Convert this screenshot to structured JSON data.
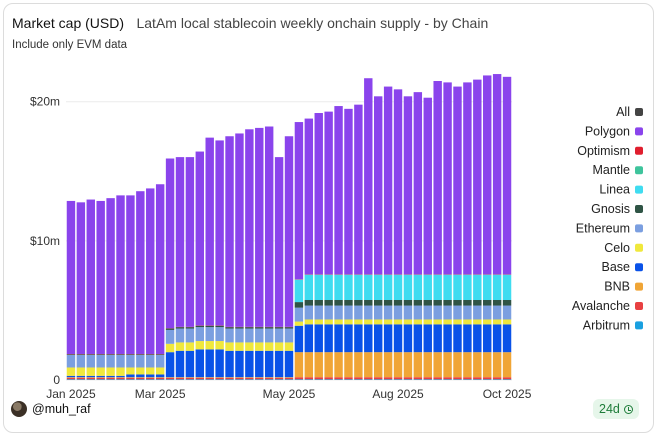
{
  "header": {
    "title": "Market cap (USD)",
    "subtitle": "LatAm local stablecoin weekly onchain supply - by Chain",
    "note": "Include only EVM data"
  },
  "footer": {
    "author": "@muh_raf",
    "badge": "24d",
    "avatar_icon": "avatar-photo",
    "badge_icon": "clock-check-icon"
  },
  "chart_data": {
    "type": "bar",
    "stacked": true,
    "unit": "USD",
    "ylim": [
      0,
      23000000
    ],
    "yticks": [
      {
        "value": 0,
        "label": "0"
      },
      {
        "value": 10000000,
        "label": "$10m"
      },
      {
        "value": 20000000,
        "label": "$20m"
      }
    ],
    "xticks": [
      {
        "index": 0,
        "label": "Jan 2025"
      },
      {
        "index": 9,
        "label": "Mar 2025"
      },
      {
        "index": 22,
        "label": "May 2025"
      },
      {
        "index": 33,
        "label": "Aug 2025"
      },
      {
        "index": 44,
        "label": "Oct 2025"
      }
    ],
    "legend_position": "right",
    "legend_all": {
      "label": "All",
      "color": "#444444"
    },
    "series": [
      {
        "name": "Arbitrum",
        "color": "#1aa0e0",
        "values": [
          0.05,
          0.05,
          0.05,
          0.05,
          0.05,
          0.05,
          0.05,
          0.05,
          0.05,
          0.05,
          0.05,
          0.05,
          0.05,
          0.05,
          0.05,
          0.05,
          0.05,
          0.05,
          0.05,
          0.05,
          0.05,
          0.05,
          0.05,
          0.05,
          0.05,
          0.05,
          0.05,
          0.05,
          0.05,
          0.05,
          0.05,
          0.05,
          0.05,
          0.05,
          0.05,
          0.05,
          0.05,
          0.05,
          0.05,
          0.05,
          0.05,
          0.05,
          0.05,
          0.05,
          0.05
        ]
      },
      {
        "name": "Avalanche",
        "color": "#e84142",
        "values": [
          0.1,
          0.1,
          0.1,
          0.1,
          0.1,
          0.1,
          0.1,
          0.1,
          0.1,
          0.1,
          0.1,
          0.1,
          0.1,
          0.1,
          0.1,
          0.1,
          0.1,
          0.1,
          0.1,
          0.1,
          0.1,
          0.1,
          0.1,
          0.15,
          0.15,
          0.15,
          0.15,
          0.15,
          0.15,
          0.15,
          0.15,
          0.15,
          0.15,
          0.15,
          0.15,
          0.15,
          0.15,
          0.15,
          0.15,
          0.15,
          0.15,
          0.15,
          0.15,
          0.15,
          0.15
        ]
      },
      {
        "name": "BNB",
        "color": "#f0a536",
        "values": [
          0.05,
          0.05,
          0.05,
          0.05,
          0.05,
          0.05,
          0.05,
          0.05,
          0.05,
          0.05,
          0.05,
          0.05,
          0.05,
          0.05,
          0.05,
          0.05,
          0.05,
          0.05,
          0.05,
          0.05,
          0.05,
          0.05,
          0.05,
          1.8,
          1.8,
          1.8,
          1.8,
          1.8,
          1.8,
          1.8,
          1.8,
          1.8,
          1.8,
          1.8,
          1.8,
          1.8,
          1.8,
          1.8,
          1.8,
          1.8,
          1.8,
          1.8,
          1.8,
          1.8,
          1.8
        ]
      },
      {
        "name": "Base",
        "color": "#0a52e8",
        "values": [
          0.1,
          0.1,
          0.1,
          0.1,
          0.1,
          0.1,
          0.2,
          0.2,
          0.2,
          0.2,
          1.8,
          1.9,
          1.9,
          2.0,
          2.0,
          2.0,
          1.9,
          1.9,
          1.9,
          1.9,
          1.9,
          1.9,
          1.9,
          1.9,
          2.0,
          2.0,
          2.0,
          2.0,
          2.0,
          2.0,
          2.0,
          2.0,
          2.0,
          2.0,
          2.0,
          2.0,
          2.0,
          2.0,
          2.0,
          2.0,
          2.0,
          2.0,
          2.0,
          2.0,
          2.0
        ]
      },
      {
        "name": "Celo",
        "color": "#f0e83c",
        "values": [
          0.6,
          0.6,
          0.6,
          0.6,
          0.6,
          0.6,
          0.5,
          0.5,
          0.5,
          0.5,
          0.6,
          0.6,
          0.6,
          0.6,
          0.6,
          0.6,
          0.6,
          0.6,
          0.6,
          0.6,
          0.6,
          0.6,
          0.6,
          0.3,
          0.35,
          0.35,
          0.35,
          0.35,
          0.35,
          0.35,
          0.35,
          0.35,
          0.35,
          0.35,
          0.35,
          0.35,
          0.35,
          0.35,
          0.35,
          0.35,
          0.35,
          0.35,
          0.35,
          0.35,
          0.35
        ]
      },
      {
        "name": "Ethereum",
        "color": "#7b9fe0",
        "values": [
          0.9,
          0.9,
          0.9,
          0.9,
          0.9,
          0.9,
          0.9,
          0.9,
          0.9,
          0.9,
          1.0,
          1.0,
          1.0,
          1.0,
          1.0,
          1.0,
          1.0,
          1.0,
          1.0,
          1.0,
          1.0,
          1.0,
          1.0,
          1.0,
          1.0,
          1.0,
          1.0,
          1.0,
          1.0,
          1.0,
          1.0,
          1.0,
          1.0,
          1.0,
          1.0,
          1.0,
          1.0,
          1.0,
          1.0,
          1.0,
          1.0,
          1.0,
          1.0,
          1.0,
          1.0
        ]
      },
      {
        "name": "Gnosis",
        "color": "#2f5445",
        "values": [
          0.05,
          0.05,
          0.05,
          0.05,
          0.05,
          0.05,
          0.05,
          0.05,
          0.05,
          0.05,
          0.1,
          0.1,
          0.1,
          0.1,
          0.1,
          0.1,
          0.1,
          0.1,
          0.1,
          0.1,
          0.1,
          0.1,
          0.1,
          0.4,
          0.4,
          0.4,
          0.4,
          0.4,
          0.4,
          0.4,
          0.4,
          0.4,
          0.4,
          0.4,
          0.4,
          0.4,
          0.4,
          0.4,
          0.4,
          0.4,
          0.4,
          0.4,
          0.4,
          0.4,
          0.4
        ]
      },
      {
        "name": "Linea",
        "color": "#3fdcf0",
        "values": [
          0,
          0,
          0,
          0,
          0,
          0,
          0,
          0,
          0,
          0,
          0,
          0,
          0,
          0,
          0,
          0,
          0,
          0,
          0,
          0,
          0,
          0,
          0,
          1.6,
          1.8,
          1.8,
          1.8,
          1.8,
          1.8,
          1.8,
          1.8,
          1.8,
          1.8,
          1.8,
          1.8,
          1.8,
          1.8,
          1.8,
          1.8,
          1.8,
          1.8,
          1.8,
          1.8,
          1.8,
          1.8
        ]
      },
      {
        "name": "Mantle",
        "color": "#3ec49c",
        "values": [
          0,
          0,
          0,
          0,
          0,
          0,
          0,
          0,
          0,
          0,
          0,
          0,
          0,
          0,
          0,
          0,
          0,
          0,
          0,
          0,
          0,
          0,
          0,
          0.02,
          0.02,
          0.02,
          0.02,
          0.02,
          0.02,
          0.02,
          0.02,
          0.02,
          0.02,
          0.02,
          0.02,
          0.02,
          0.02,
          0.02,
          0.02,
          0.02,
          0.02,
          0.02,
          0.02,
          0.02,
          0.02
        ]
      },
      {
        "name": "Optimism",
        "color": "#e01e2e",
        "values": [
          0.02,
          0.02,
          0.02,
          0.02,
          0.02,
          0.02,
          0.02,
          0.02,
          0.02,
          0.02,
          0.02,
          0.02,
          0.02,
          0.02,
          0.02,
          0.02,
          0.02,
          0.02,
          0.02,
          0.02,
          0.02,
          0.02,
          0.02,
          0.02,
          0.02,
          0.02,
          0.02,
          0.02,
          0.02,
          0.02,
          0.02,
          0.02,
          0.02,
          0.02,
          0.02,
          0.02,
          0.02,
          0.02,
          0.02,
          0.02,
          0.02,
          0.02,
          0.02,
          0.02,
          0.02
        ]
      },
      {
        "name": "Polygon",
        "color": "#8a44ec",
        "values": [
          11.0,
          10.9,
          11.1,
          11.0,
          11.2,
          11.4,
          11.4,
          11.7,
          11.9,
          12.2,
          12.2,
          12.2,
          12.2,
          12.5,
          13.5,
          13.3,
          13.7,
          13.9,
          14.2,
          14.3,
          14.4,
          12.2,
          13.7,
          11.3,
          11.2,
          11.6,
          11.7,
          12.1,
          11.9,
          12.2,
          14.1,
          12.8,
          13.5,
          13.3,
          12.8,
          13.1,
          12.7,
          13.9,
          13.8,
          13.5,
          13.8,
          14.0,
          14.3,
          14.4,
          14.2
        ]
      }
    ]
  }
}
